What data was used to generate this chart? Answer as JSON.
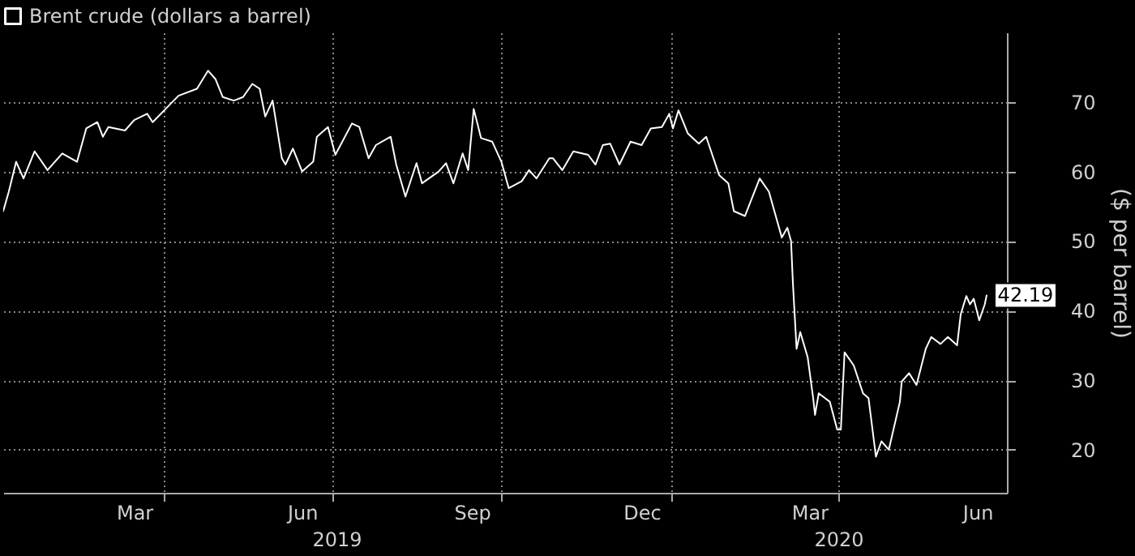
{
  "chart_data": {
    "type": "line",
    "legend": "top left",
    "series": [
      {
        "name": "Brent crude (dollars a barrel)",
        "color": "#ffffff",
        "x": [
          "2019-01-04",
          "2019-01-07",
          "2019-01-11",
          "2019-01-15",
          "2019-01-21",
          "2019-01-28",
          "2019-02-05",
          "2019-02-13",
          "2019-02-18",
          "2019-02-24",
          "2019-02-27",
          "2019-03-02",
          "2019-03-11",
          "2019-03-16",
          "2019-03-23",
          "2019-03-26",
          "2019-04-02",
          "2019-04-09",
          "2019-04-19",
          "2019-04-25",
          "2019-04-29",
          "2019-05-03",
          "2019-05-09",
          "2019-05-14",
          "2019-05-19",
          "2019-05-23",
          "2019-05-26",
          "2019-05-30",
          "2019-06-04",
          "2019-06-06",
          "2019-06-10",
          "2019-06-15",
          "2019-06-21",
          "2019-06-23",
          "2019-06-29",
          "2019-07-03",
          "2019-07-12",
          "2019-07-16",
          "2019-07-21",
          "2019-07-25",
          "2019-08-02",
          "2019-08-05",
          "2019-08-10",
          "2019-08-16",
          "2019-08-19",
          "2019-08-28",
          "2019-09-01",
          "2019-09-05",
          "2019-09-10",
          "2019-09-13",
          "2019-09-16",
          "2019-09-20",
          "2019-09-26",
          "2019-10-01",
          "2019-10-05",
          "2019-10-12",
          "2019-10-16",
          "2019-10-20",
          "2019-10-27",
          "2019-10-29",
          "2019-11-03",
          "2019-11-09",
          "2019-11-17",
          "2019-11-21",
          "2019-11-25",
          "2019-11-29",
          "2019-12-04",
          "2019-12-10",
          "2019-12-16",
          "2019-12-21",
          "2019-12-27",
          "2019-12-31",
          "2020-01-02",
          "2020-01-05",
          "2020-01-10",
          "2020-01-16",
          "2020-01-20",
          "2020-01-27",
          "2020-02-01",
          "2020-02-04",
          "2020-02-10",
          "2020-02-18",
          "2020-02-23",
          "2020-03-01",
          "2020-03-04",
          "2020-03-06",
          "2020-03-07",
          "2020-03-09",
          "2020-03-11",
          "2020-03-15",
          "2020-03-18",
          "2020-03-19",
          "2020-03-21",
          "2020-03-27",
          "2020-03-31",
          "2020-04-02",
          "2020-04-04",
          "2020-04-09",
          "2020-04-14",
          "2020-04-17",
          "2020-04-21",
          "2020-04-24",
          "2020-04-28",
          "2020-05-04",
          "2020-05-05",
          "2020-05-09",
          "2020-05-13",
          "2020-05-18",
          "2020-05-21",
          "2020-05-26",
          "2020-05-30",
          "2020-06-04",
          "2020-06-06",
          "2020-06-09",
          "2020-06-11",
          "2020-06-13",
          "2020-06-16",
          "2020-06-19",
          "2020-06-20"
        ],
        "value_labels": [
          null,
          null,
          null,
          null,
          null,
          null,
          null,
          null,
          null,
          null,
          null,
          null,
          null,
          null,
          null,
          null,
          null,
          null,
          null,
          null,
          null,
          null,
          null,
          null,
          null,
          null,
          null,
          null,
          null,
          null,
          null,
          null,
          null,
          null,
          null,
          null,
          null,
          null,
          null,
          null,
          null,
          null,
          null,
          null,
          null,
          null,
          null,
          null,
          null,
          null,
          null,
          null,
          null,
          null,
          null,
          null,
          null,
          null,
          null,
          null,
          null,
          null,
          null,
          null,
          null,
          null,
          null,
          null,
          null,
          null,
          null,
          null,
          null,
          null,
          null,
          null,
          null,
          null,
          null,
          null,
          null,
          null,
          null,
          null,
          null,
          null,
          null,
          null,
          null,
          null,
          null,
          null,
          null,
          null,
          null,
          null,
          null,
          null,
          null,
          null,
          null,
          null,
          null,
          null,
          null,
          null,
          null,
          null,
          null,
          null,
          null,
          null,
          null,
          null,
          null,
          null,
          null,
          null,
          "42.19"
        ],
        "values": [
          54.3,
          57.1,
          61.4,
          59.0,
          62.9,
          60.2,
          62.6,
          61.4,
          66.2,
          67.1,
          65.0,
          66.4,
          65.9,
          67.4,
          68.3,
          67.1,
          69.0,
          70.9,
          71.9,
          74.5,
          73.3,
          70.7,
          70.2,
          70.7,
          72.6,
          71.9,
          67.9,
          70.2,
          61.9,
          61.0,
          63.3,
          60.0,
          61.4,
          65.0,
          66.4,
          62.4,
          66.9,
          66.4,
          61.9,
          63.8,
          65.0,
          61.0,
          56.4,
          61.2,
          58.3,
          60.0,
          61.2,
          58.3,
          62.6,
          60.2,
          69.0,
          64.8,
          64.3,
          61.4,
          57.6,
          58.6,
          60.2,
          59.0,
          61.9,
          61.9,
          60.2,
          62.9,
          62.4,
          61.0,
          63.8,
          64.0,
          61.0,
          64.3,
          63.8,
          66.2,
          66.4,
          68.3,
          66.2,
          68.8,
          65.5,
          64.0,
          65.0,
          59.5,
          58.3,
          54.3,
          53.6,
          59.0,
          57.1,
          50.5,
          51.9,
          50.0,
          44.0,
          34.5,
          36.9,
          33.3,
          27.4,
          25.0,
          28.1,
          26.9,
          22.9,
          22.9,
          34.0,
          32.1,
          28.1,
          27.4,
          19.0,
          21.2,
          20.0,
          26.9,
          29.8,
          31.0,
          29.3,
          34.5,
          36.2,
          35.2,
          36.2,
          35.0,
          39.5,
          42.1,
          40.9,
          41.7,
          38.6,
          40.9,
          42.19
        ]
      }
    ],
    "xlim": [
      "2019-01-04",
      "2020-07-01"
    ],
    "xticks": [
      {
        "value": "2019-03-16",
        "label": "Mar"
      },
      {
        "value": "2019-04-01",
        "label": null
      },
      {
        "value": "2019-06-15",
        "label": "Jun"
      },
      {
        "value": "2019-07-01",
        "label": null
      },
      {
        "value": "2019-09-15",
        "label": "Sep"
      },
      {
        "value": "2019-10-01",
        "label": null
      },
      {
        "value": "2019-12-16",
        "label": "Dec"
      },
      {
        "value": "2020-01-01",
        "label": null
      },
      {
        "value": "2020-03-16",
        "label": "Mar"
      },
      {
        "value": "2020-04-01",
        "label": null
      },
      {
        "value": "2020-06-15",
        "label": "Jun"
      }
    ],
    "ylim": [
      13.8,
      80
    ],
    "yticks": [
      20,
      30,
      40,
      50,
      60,
      70
    ],
    "ylabel": "($ per barrel)",
    "grid": true,
    "annotations": [
      "2019",
      "2020"
    ]
  }
}
